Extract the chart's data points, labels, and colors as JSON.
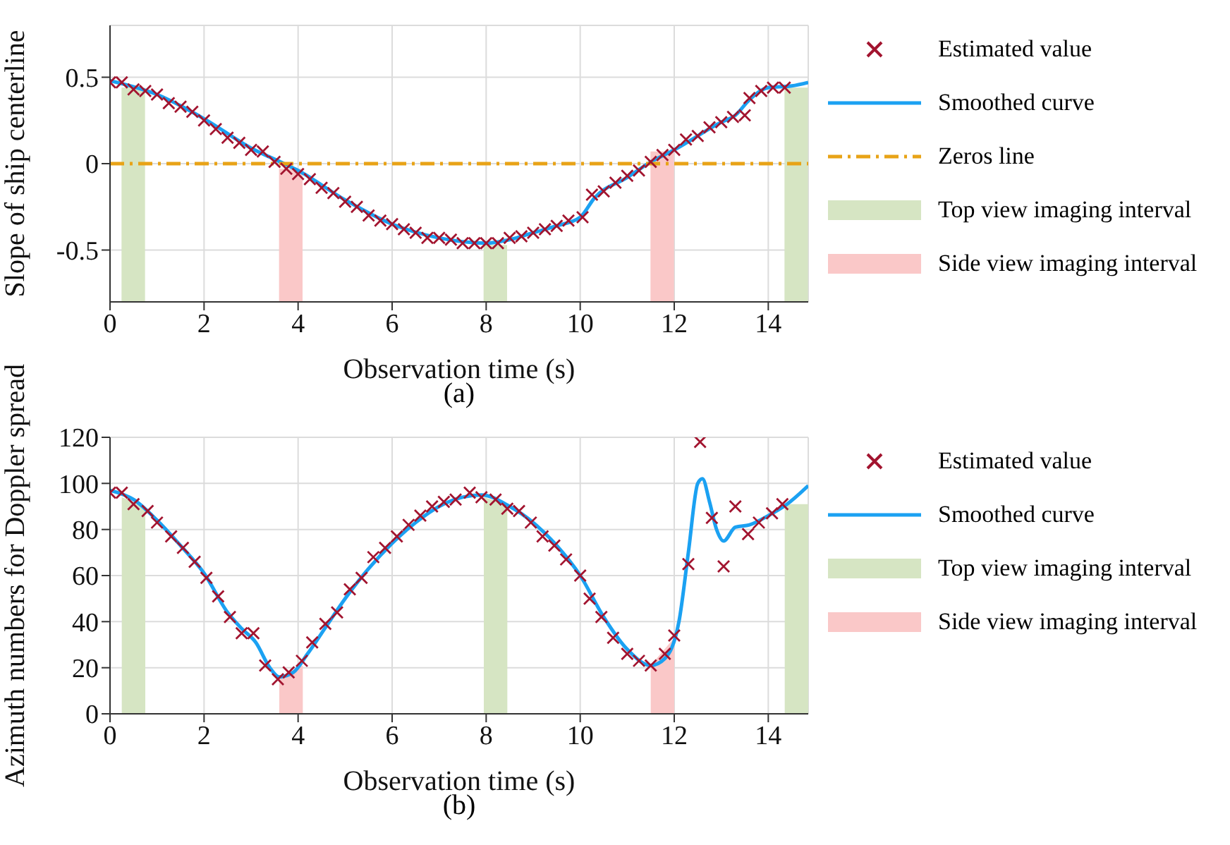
{
  "chart_data": [
    {
      "type": "line",
      "title": "(a)",
      "xlabel": "Observation time (s)",
      "ylabel": "Slope of ship centerline",
      "xlim": [
        0,
        14.85
      ],
      "xticks": [
        0,
        2,
        4,
        6,
        8,
        10,
        12,
        14
      ],
      "ylim": [
        -0.8,
        0.8
      ],
      "yticks": [
        -0.5,
        0,
        0.5
      ],
      "grid": true,
      "legend": "right",
      "series": [
        {
          "name": "Estimated value",
          "type": "scatter",
          "marker": "cross",
          "color": "#a2142f",
          "x": [
            0,
            0.25,
            0.5,
            0.75,
            1.0,
            1.25,
            1.5,
            1.75,
            2.0,
            2.25,
            2.5,
            2.75,
            3.0,
            3.25,
            3.5,
            3.75,
            4.0,
            4.25,
            4.5,
            4.75,
            5.0,
            5.25,
            5.5,
            5.75,
            6.0,
            6.25,
            6.5,
            6.75,
            7.0,
            7.25,
            7.5,
            7.75,
            8.0,
            8.25,
            8.5,
            8.75,
            9.0,
            9.25,
            9.5,
            9.75,
            10.05,
            10.25,
            10.5,
            10.75,
            11.0,
            11.25,
            11.5,
            11.75,
            12.0,
            12.25,
            12.5,
            12.75,
            13.0,
            13.25,
            13.5,
            13.6,
            13.85,
            14.1,
            14.35
          ],
          "values": [
            0.47,
            0.47,
            0.43,
            0.42,
            0.4,
            0.35,
            0.33,
            0.3,
            0.25,
            0.2,
            0.15,
            0.12,
            0.08,
            0.07,
            0.01,
            -0.03,
            -0.06,
            -0.09,
            -0.14,
            -0.17,
            -0.22,
            -0.25,
            -0.3,
            -0.33,
            -0.35,
            -0.38,
            -0.4,
            -0.43,
            -0.43,
            -0.44,
            -0.46,
            -0.46,
            -0.46,
            -0.46,
            -0.43,
            -0.42,
            -0.4,
            -0.38,
            -0.36,
            -0.33,
            -0.31,
            -0.18,
            -0.16,
            -0.11,
            -0.07,
            -0.04,
            0.01,
            0.05,
            0.08,
            0.14,
            0.16,
            0.21,
            0.24,
            0.27,
            0.28,
            0.38,
            0.42,
            0.44,
            0.44
          ]
        },
        {
          "name": "Smoothed curve",
          "type": "line",
          "color": "#1ba1f2",
          "x": [
            0,
            1,
            2,
            3,
            3.7,
            4,
            5,
            6,
            7,
            8,
            8.5,
            9,
            9.5,
            10,
            10.3,
            11,
            11.5,
            12,
            13,
            13.3,
            13.6,
            14,
            14.5,
            14.85
          ],
          "values": [
            0.48,
            0.4,
            0.26,
            0.09,
            0,
            -0.04,
            -0.21,
            -0.35,
            -0.43,
            -0.46,
            -0.44,
            -0.4,
            -0.36,
            -0.31,
            -0.2,
            -0.08,
            0.01,
            0.08,
            0.24,
            0.28,
            0.37,
            0.44,
            0.45,
            0.47
          ]
        },
        {
          "name": "Zeros line",
          "type": "line",
          "line_style": "dashed",
          "color": "#e8a317",
          "x": [
            0,
            14.85
          ],
          "values": [
            0,
            0
          ]
        },
        {
          "name": "Top view imaging interval",
          "type": "bar",
          "color": "#d6e5c3",
          "x": [
            0.5,
            8.2,
            14.6
          ],
          "base": [
            -0.8,
            -0.8,
            -0.8
          ],
          "values": [
            1.24,
            0.33,
            1.24
          ]
        },
        {
          "name": "Side view imaging interval",
          "type": "bar",
          "color": "#fac8c8",
          "x": [
            3.85,
            11.75
          ],
          "base": [
            -0.8,
            -0.8
          ],
          "values": [
            0.77,
            0.87
          ]
        }
      ]
    },
    {
      "type": "line",
      "title": "(b)",
      "xlabel": "Observation time (s)",
      "ylabel": "Azimuth numbers for Doppler spread",
      "xlim": [
        0,
        14.85
      ],
      "xticks": [
        0,
        2,
        4,
        6,
        8,
        10,
        12,
        14
      ],
      "ylim": [
        0,
        120
      ],
      "yticks": [
        0,
        20,
        40,
        60,
        80,
        100,
        120
      ],
      "grid": true,
      "legend": "right",
      "series": [
        {
          "name": "Estimated value",
          "type": "scatter",
          "marker": "cross",
          "color": "#a2142f",
          "x": [
            0,
            0.25,
            0.5,
            0.8,
            1.0,
            1.3,
            1.55,
            1.8,
            2.05,
            2.3,
            2.55,
            2.8,
            3.05,
            3.3,
            3.57,
            3.8,
            4.08,
            4.3,
            4.58,
            4.83,
            5.1,
            5.35,
            5.6,
            5.85,
            6.1,
            6.35,
            6.6,
            6.85,
            7.1,
            7.35,
            7.65,
            7.9,
            8.2,
            8.45,
            8.7,
            8.95,
            9.2,
            9.45,
            9.7,
            10.0,
            10.2,
            10.45,
            10.7,
            11.0,
            11.25,
            11.5,
            11.8,
            12.0,
            12.3,
            12.55,
            12.8,
            13.05,
            13.3,
            13.57,
            13.8,
            14.08,
            14.3
          ],
          "values": [
            96,
            96,
            91,
            88,
            83,
            77,
            72,
            66,
            59,
            51,
            42,
            35,
            35,
            21,
            15,
            18,
            23,
            31,
            39,
            44,
            54,
            59,
            68,
            72,
            77,
            82,
            86,
            90,
            92,
            93,
            96,
            94,
            93,
            89,
            88,
            83,
            77,
            73,
            67,
            60,
            50,
            42,
            33,
            26,
            23,
            21,
            26,
            34,
            65,
            118,
            85,
            64,
            90,
            78,
            83,
            87,
            91
          ]
        },
        {
          "name": "Smoothed curve",
          "type": "line",
          "color": "#1ba1f2",
          "x": [
            0,
            0.5,
            1,
            1.5,
            2,
            2.5,
            2.8,
            3.1,
            3.4,
            3.6,
            3.9,
            4.2,
            4.6,
            5,
            5.5,
            6,
            6.5,
            7,
            7.5,
            7.9,
            8.5,
            9,
            9.5,
            10,
            10.5,
            11,
            11.5,
            11.8,
            12.1,
            12.3,
            12.5,
            12.6,
            12.75,
            12.9,
            13.05,
            13.3,
            13.6,
            14,
            14.4,
            14.85
          ],
          "values": [
            97,
            93,
            84,
            73,
            61,
            44,
            37,
            31,
            20,
            16,
            18,
            26,
            38,
            50,
            63,
            74,
            83,
            90,
            94,
            95,
            90,
            83,
            73,
            60,
            42,
            28,
            21,
            24,
            40,
            70,
            100,
            102,
            92,
            80,
            75,
            81,
            82,
            86,
            91,
            99
          ]
        },
        {
          "name": "Top view imaging interval",
          "type": "area",
          "color": "#d6e5c3",
          "x": [
            0.25,
            0.75,
            4,
            7.95,
            8.45,
            11,
            14.35,
            14.85
          ],
          "values": [
            94,
            90,
            null,
            94,
            91,
            null,
            91,
            91
          ]
        },
        {
          "name": "Side view imaging interval",
          "type": "area",
          "color": "#fac8c8",
          "x": [
            3.6,
            4.1,
            8,
            11.5,
            12.0
          ],
          "values": [
            16,
            21,
            null,
            21,
            33
          ]
        }
      ]
    }
  ]
}
